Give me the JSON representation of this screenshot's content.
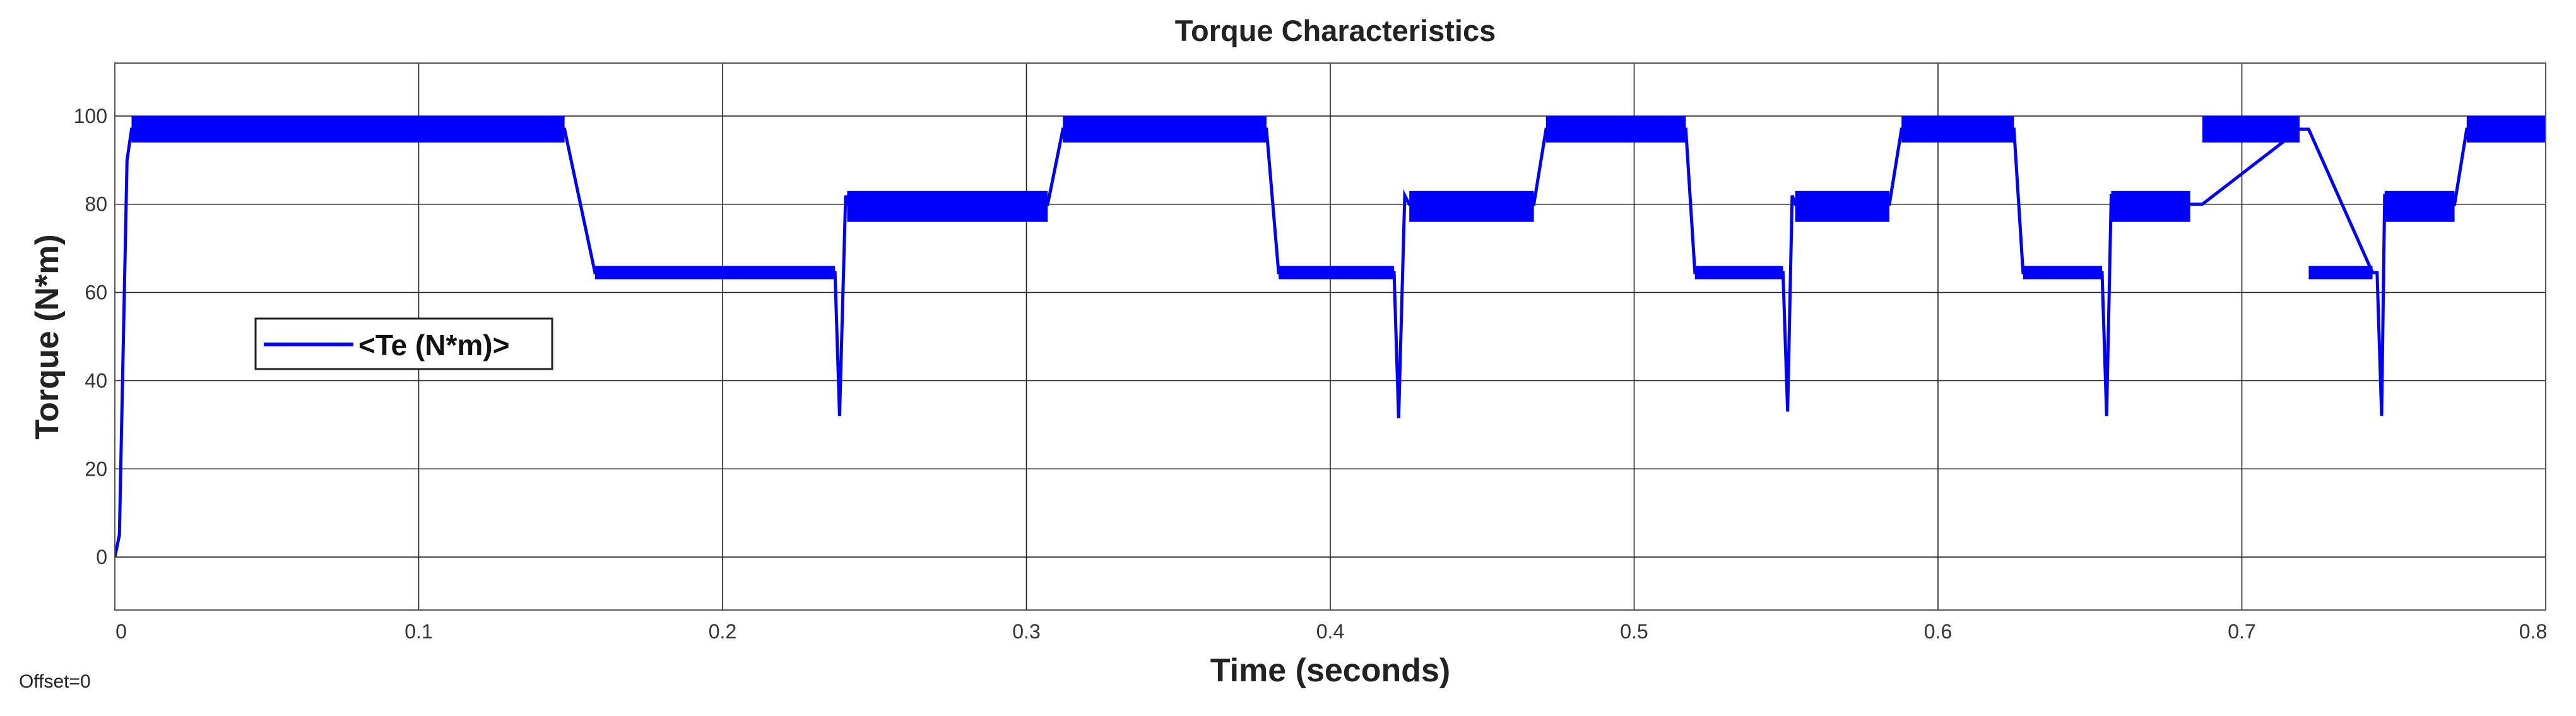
{
  "footer": {
    "offset_text": "Offset=0"
  },
  "chart_data": {
    "type": "line",
    "title": "Torque Characteristics",
    "xlabel": "Time (seconds)",
    "ylabel": "Torque (N*m)",
    "xlim": [
      0,
      0.8
    ],
    "ylim": [
      -12,
      112
    ],
    "xticks": [
      0,
      0.1,
      0.2,
      0.3,
      0.4,
      0.5,
      0.6,
      0.7,
      0.8
    ],
    "xtick_labels": [
      "0",
      "0.1",
      "0.2",
      "0.3",
      "0.4",
      "0.5",
      "0.6",
      "0.7",
      "0.8"
    ],
    "yticks": [
      0,
      20,
      40,
      60,
      80,
      100
    ],
    "ytick_labels": [
      "0",
      "20",
      "40",
      "60",
      "80",
      "100"
    ],
    "grid": true,
    "legend": {
      "position": "left-middle",
      "entries": [
        "<Te (N*m)>"
      ]
    },
    "series": [
      {
        "name": "<Te (N*m)>",
        "color": "#0000ff",
        "ripple_band": [
          [
            0.0055,
            0.148,
            94,
            100
          ],
          [
            0.158,
            0.237,
            63,
            66
          ],
          [
            0.241,
            0.307,
            76,
            83
          ],
          [
            0.312,
            0.379,
            94,
            100
          ],
          [
            0.383,
            0.421,
            63,
            66
          ],
          [
            0.426,
            0.467,
            76,
            83
          ],
          [
            0.471,
            0.517,
            94,
            100
          ],
          [
            0.52,
            0.549,
            63,
            66
          ],
          [
            0.553,
            0.584,
            76,
            83
          ],
          [
            0.588,
            0.625,
            94,
            100
          ],
          [
            0.628,
            0.654,
            63,
            66
          ],
          [
            0.657,
            0.683,
            76,
            83
          ],
          [
            0.687,
            0.719,
            94,
            100
          ],
          [
            0.722,
            0.743,
            63,
            66
          ],
          [
            0.747,
            0.77,
            76,
            83
          ],
          [
            0.774,
            0.8,
            94,
            100
          ]
        ],
        "x": [
          0,
          0.0015,
          0.004,
          0.0055,
          0.148,
          0.158,
          0.237,
          0.2385,
          0.2405,
          0.241,
          0.307,
          0.312,
          0.379,
          0.383,
          0.421,
          0.4225,
          0.4245,
          0.426,
          0.467,
          0.471,
          0.517,
          0.52,
          0.549,
          0.5505,
          0.552,
          0.553,
          0.584,
          0.588,
          0.625,
          0.628,
          0.654,
          0.6555,
          0.657,
          0.683,
          0.687,
          0.719,
          0.722,
          0.743,
          0.7445,
          0.746,
          0.747,
          0.77,
          0.774,
          0.8
        ],
        "y": [
          0,
          5,
          90,
          97,
          97,
          64.5,
          64.5,
          32,
          82,
          80,
          80,
          97,
          97,
          64.5,
          64.5,
          31.5,
          82,
          80,
          80,
          97,
          97,
          64.5,
          64.5,
          33,
          82,
          80,
          80,
          97,
          97,
          64.5,
          64.5,
          32,
          82,
          80,
          80,
          97,
          97,
          64.5,
          64.5,
          32,
          82,
          80,
          97,
          97
        ]
      }
    ]
  }
}
